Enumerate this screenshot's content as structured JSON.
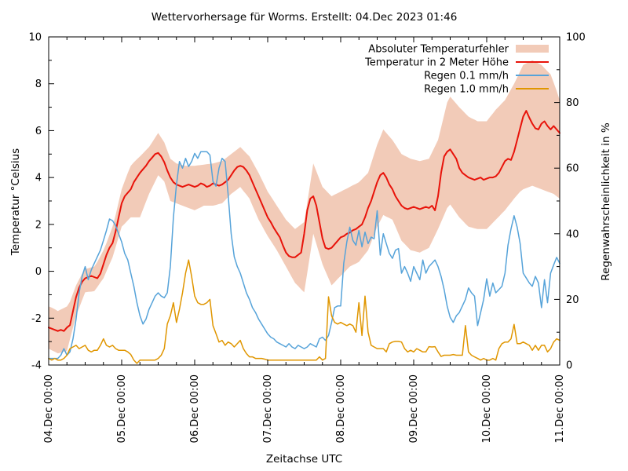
{
  "title": "Wettervorhersage für Worms. Erstellt: 04.Dec 2023 01:46",
  "axes": {
    "x_label": "Zeitachse UTC",
    "y_left_label": "Temperatur °Celsius",
    "y_right_label": "Regenwahrscheinlichkeit in %",
    "y_left_range": [
      -4,
      10
    ],
    "y_left_tick_step": 2,
    "y_right_range": [
      0,
      100
    ],
    "y_right_tick_step": 20,
    "x_tick_labels": [
      "04.Dec 00:00",
      "05.Dec 00:00",
      "06.Dec 00:00",
      "07.Dec 00:00",
      "08.Dec 00:00",
      "09.Dec 00:00",
      "10.Dec 00:00",
      "11.Dec 00:00"
    ],
    "x_minor_tick_hours": 6
  },
  "legend": [
    {
      "label": "Absoluter Temperaturfehler",
      "type": "band",
      "color": "#f2cbb8"
    },
    {
      "label": "Temperatur in 2 Meter Höhe",
      "type": "line",
      "color": "#e8130a"
    },
    {
      "label": "Regen 0.1 mm/h",
      "type": "line",
      "color": "#56a3d9"
    },
    {
      "label": "Regen 1.0 mm/h",
      "type": "line",
      "color": "#e09600"
    }
  ],
  "chart_data": {
    "type": "line",
    "title": "Wettervorhersage für Worms. Erstellt: 04.Dec 2023 01:46",
    "xlabel": "Zeitachse UTC",
    "ylabel_left": "Temperatur °Celsius",
    "ylabel_right": "Regenwahrscheinlichkeit in %",
    "x_start": "04.Dec 2023 00:00 UTC",
    "x_end": "11.Dec 2023 00:00 UTC",
    "x_step_hours": 1,
    "ylim_left": [
      -4,
      10
    ],
    "ylim_right": [
      0,
      100
    ],
    "grid": false,
    "legend_position": "top-right-inside",
    "series": [
      {
        "name": "Absoluter Temperaturfehler",
        "style": "band",
        "axis": "left",
        "upper": [
          -1.5,
          -1.55,
          -1.62,
          -1.7,
          -1.63,
          -1.57,
          -1.5,
          -1.3,
          -0.95,
          -0.6,
          -0.35,
          -0.1,
          0.1,
          0.13,
          0.17,
          0.2,
          0.4,
          0.65,
          0.9,
          1.2,
          1.55,
          1.9,
          2.4,
          2.95,
          3.5,
          3.85,
          4.2,
          4.5,
          4.65,
          4.78,
          4.9,
          5.03,
          5.17,
          5.3,
          5.5,
          5.7,
          5.9,
          5.7,
          5.5,
          5.15,
          4.8,
          4.7,
          4.6,
          4.57,
          4.53,
          4.5,
          4.5,
          4.5,
          4.5,
          4.52,
          4.53,
          4.55,
          4.57,
          4.58,
          4.6,
          4.63,
          4.67,
          4.7,
          4.8,
          4.9,
          5.0,
          5.1,
          5.2,
          5.3,
          5.17,
          5.03,
          4.9,
          4.67,
          4.43,
          4.2,
          3.93,
          3.67,
          3.4,
          3.2,
          3.0,
          2.8,
          2.6,
          2.4,
          2.2,
          2.07,
          1.93,
          1.8,
          1.9,
          2.0,
          2.1,
          2.93,
          3.77,
          4.6,
          4.27,
          3.93,
          3.6,
          3.47,
          3.33,
          3.2,
          3.27,
          3.33,
          3.4,
          3.47,
          3.53,
          3.6,
          3.67,
          3.73,
          3.8,
          3.93,
          4.07,
          4.2,
          4.6,
          5.0,
          5.4,
          5.72,
          6.05,
          5.9,
          5.75,
          5.6,
          5.4,
          5.2,
          5.0,
          4.93,
          4.87,
          4.8,
          4.77,
          4.73,
          4.7,
          4.73,
          4.77,
          4.8,
          5.07,
          5.33,
          5.6,
          6.13,
          6.67,
          7.2,
          7.45,
          7.3,
          7.15,
          7.0,
          6.87,
          6.73,
          6.6,
          6.53,
          6.47,
          6.4,
          6.4,
          6.4,
          6.4,
          6.57,
          6.73,
          6.9,
          7.03,
          7.17,
          7.3,
          7.53,
          7.77,
          8.0,
          8.27,
          8.53,
          8.8,
          8.87,
          8.93,
          9.0,
          8.93,
          8.87,
          8.8,
          8.67,
          8.53,
          8.4,
          8.05,
          7.7,
          7.3
        ],
        "lower": [
          -3.3,
          -3.37,
          -3.43,
          -3.5,
          -3.47,
          -3.43,
          -3.4,
          -2.9,
          -2.4,
          -1.9,
          -1.57,
          -1.23,
          -0.9,
          -0.88,
          -0.87,
          -0.85,
          -0.67,
          -0.48,
          -0.3,
          0.0,
          0.3,
          0.6,
          1.03,
          1.47,
          1.9,
          2.03,
          2.17,
          2.3,
          2.3,
          2.3,
          2.3,
          2.63,
          2.97,
          3.3,
          3.57,
          3.83,
          4.1,
          3.97,
          3.83,
          3.42,
          3.0,
          2.95,
          2.9,
          2.85,
          2.8,
          2.75,
          2.7,
          2.65,
          2.6,
          2.67,
          2.73,
          2.8,
          2.8,
          2.8,
          2.8,
          2.83,
          2.87,
          2.9,
          3.03,
          3.17,
          3.3,
          3.4,
          3.5,
          3.6,
          3.43,
          3.27,
          3.1,
          2.8,
          2.5,
          2.2,
          1.97,
          1.73,
          1.5,
          1.3,
          1.1,
          0.9,
          0.67,
          0.43,
          0.2,
          -0.03,
          -0.27,
          -0.5,
          -0.63,
          -0.77,
          -0.9,
          -0.07,
          0.77,
          1.6,
          1.17,
          0.73,
          0.3,
          0.0,
          -0.3,
          -0.6,
          -0.47,
          -0.33,
          -0.2,
          -0.07,
          0.07,
          0.2,
          0.27,
          0.33,
          0.4,
          0.57,
          0.73,
          0.9,
          1.23,
          1.57,
          1.9,
          2.15,
          2.4,
          2.33,
          2.27,
          2.2,
          1.9,
          1.6,
          1.3,
          1.17,
          1.03,
          0.9,
          0.87,
          0.83,
          0.8,
          0.87,
          0.93,
          1.0,
          1.27,
          1.53,
          1.8,
          2.1,
          2.4,
          2.7,
          2.85,
          2.67,
          2.48,
          2.3,
          2.17,
          2.03,
          1.9,
          1.87,
          1.83,
          1.8,
          1.8,
          1.8,
          1.8,
          1.93,
          2.07,
          2.2,
          2.33,
          2.47,
          2.6,
          2.77,
          2.93,
          3.1,
          3.25,
          3.4,
          3.5,
          3.55,
          3.6,
          3.65,
          3.6,
          3.55,
          3.5,
          3.45,
          3.4,
          3.35,
          3.3,
          3.2,
          3.1
        ]
      },
      {
        "name": "Temperatur in 2 Meter Höhe",
        "style": "line",
        "axis": "left",
        "values": [
          -2.4,
          -2.45,
          -2.5,
          -2.55,
          -2.5,
          -2.55,
          -2.4,
          -2.3,
          -1.7,
          -1.1,
          -0.7,
          -0.45,
          -0.3,
          -0.25,
          -0.2,
          -0.25,
          -0.3,
          -0.1,
          0.3,
          0.7,
          1.0,
          1.2,
          1.7,
          2.3,
          2.9,
          3.2,
          3.35,
          3.5,
          3.8,
          4.0,
          4.2,
          4.35,
          4.5,
          4.7,
          4.85,
          5.0,
          5.05,
          4.9,
          4.65,
          4.3,
          4.0,
          3.8,
          3.7,
          3.65,
          3.6,
          3.65,
          3.7,
          3.65,
          3.6,
          3.65,
          3.75,
          3.7,
          3.6,
          3.65,
          3.75,
          3.7,
          3.65,
          3.7,
          3.8,
          3.9,
          4.1,
          4.3,
          4.45,
          4.5,
          4.45,
          4.3,
          4.1,
          3.8,
          3.5,
          3.2,
          2.9,
          2.6,
          2.3,
          2.1,
          1.85,
          1.65,
          1.45,
          1.1,
          0.8,
          0.65,
          0.6,
          0.6,
          0.7,
          0.8,
          1.6,
          2.6,
          3.1,
          3.2,
          2.8,
          2.1,
          1.4,
          1.0,
          0.95,
          1.0,
          1.15,
          1.3,
          1.45,
          1.5,
          1.6,
          1.65,
          1.75,
          1.8,
          1.9,
          2.0,
          2.3,
          2.7,
          3.0,
          3.4,
          3.8,
          4.1,
          4.2,
          4.0,
          3.7,
          3.5,
          3.2,
          3.0,
          2.8,
          2.7,
          2.65,
          2.7,
          2.75,
          2.7,
          2.65,
          2.7,
          2.75,
          2.7,
          2.8,
          2.6,
          3.2,
          4.2,
          4.9,
          5.1,
          5.2,
          5.0,
          4.8,
          4.4,
          4.2,
          4.1,
          4.0,
          3.95,
          3.9,
          3.95,
          4.0,
          3.9,
          3.95,
          4.0,
          4.0,
          4.05,
          4.2,
          4.45,
          4.7,
          4.8,
          4.75,
          5.1,
          5.6,
          6.1,
          6.6,
          6.85,
          6.55,
          6.3,
          6.1,
          6.05,
          6.3,
          6.4,
          6.2,
          6.05,
          6.2,
          6.05,
          5.9
        ]
      },
      {
        "name": "Regen 0.1 mm/h",
        "style": "line",
        "axis": "right",
        "values": [
          2,
          2,
          2,
          2,
          3,
          5,
          3,
          4,
          8,
          14,
          22,
          27,
          30,
          26,
          29,
          31,
          33,
          35,
          38,
          41,
          44.5,
          44,
          42.5,
          40,
          37.5,
          34,
          32,
          28,
          24,
          19,
          15,
          12.5,
          14,
          17,
          19,
          21,
          22,
          21,
          20.5,
          22,
          30,
          45,
          55,
          62,
          60,
          63,
          60.5,
          62,
          64.5,
          63,
          65,
          65,
          65,
          64,
          56,
          54.5,
          60,
          63,
          62,
          52,
          40,
          33,
          30,
          28,
          25,
          22,
          20,
          17.5,
          16,
          14,
          12.5,
          11,
          9.5,
          8.5,
          8,
          7,
          6.5,
          6,
          5.5,
          6.5,
          5.5,
          5,
          6,
          5.5,
          5,
          5.5,
          6.5,
          6,
          5.5,
          8,
          8.5,
          7.5,
          9,
          13,
          17.5,
          18,
          18,
          31,
          37.5,
          42,
          38,
          36.5,
          41,
          36,
          40.5,
          37,
          39,
          38.5,
          47,
          33.5,
          40,
          37,
          34,
          32.5,
          35,
          35.5,
          28,
          30,
          28,
          25.5,
          30,
          28,
          26,
          32,
          28,
          30,
          31,
          32,
          30,
          27,
          23,
          18,
          14.5,
          13,
          15,
          16,
          18,
          20,
          23.5,
          22,
          21,
          12,
          16,
          20,
          26.3,
          21,
          25,
          22,
          23,
          24,
          28,
          36.5,
          41.5,
          45.5,
          42,
          37,
          28,
          26.5,
          25,
          24,
          27,
          25,
          17.5,
          26,
          19,
          28,
          30.5,
          32.8,
          31
        ]
      },
      {
        "name": "Regen 1.0 mm/h",
        "style": "line",
        "axis": "right",
        "values": [
          2,
          1.5,
          2,
          1.5,
          1.5,
          2,
          3,
          5,
          5.5,
          6,
          5,
          5.5,
          6,
          4.5,
          4,
          4.5,
          4.5,
          6,
          8,
          6,
          5.5,
          6,
          5,
          4.5,
          4.5,
          4.5,
          4,
          3.2,
          1.5,
          0.5,
          1.5,
          1.5,
          1.5,
          1.5,
          1.5,
          1.5,
          2,
          3,
          5,
          12.5,
          15,
          19,
          13,
          17,
          22,
          28,
          32,
          27,
          21,
          19,
          18.5,
          18.5,
          19,
          20,
          12,
          9.6,
          7,
          7.5,
          6,
          7,
          6.5,
          5.5,
          6.5,
          7.5,
          5,
          3.5,
          2.5,
          2.5,
          2,
          2,
          2,
          1.8,
          1.5,
          1.5,
          1.5,
          1.5,
          1.5,
          1.5,
          1.5,
          1.5,
          1.5,
          1.5,
          1.5,
          1.5,
          1.5,
          1.5,
          1.5,
          1.5,
          1.5,
          2.5,
          1.5,
          2,
          20.8,
          15,
          13,
          12.5,
          13,
          12.5,
          12,
          12.5,
          12,
          10,
          19,
          9,
          21,
          10,
          6,
          5.5,
          5,
          5,
          5,
          4,
          6.5,
          7,
          7.2,
          7.2,
          7,
          5,
          4,
          4.5,
          4,
          5,
          4.5,
          4,
          4,
          5.6,
          5.5,
          5.6,
          4,
          2.6,
          3,
          3,
          3,
          3.2,
          3,
          3,
          3,
          12,
          4,
          3,
          2.5,
          2,
          1.5,
          2,
          1.5,
          1.5,
          2,
          1.5,
          5,
          6.5,
          7,
          7,
          8,
          12.4,
          6.5,
          6.5,
          7,
          6.5,
          6,
          4.5,
          6,
          4.5,
          6,
          6,
          4,
          5,
          7,
          8,
          7.5
        ]
      }
    ]
  }
}
